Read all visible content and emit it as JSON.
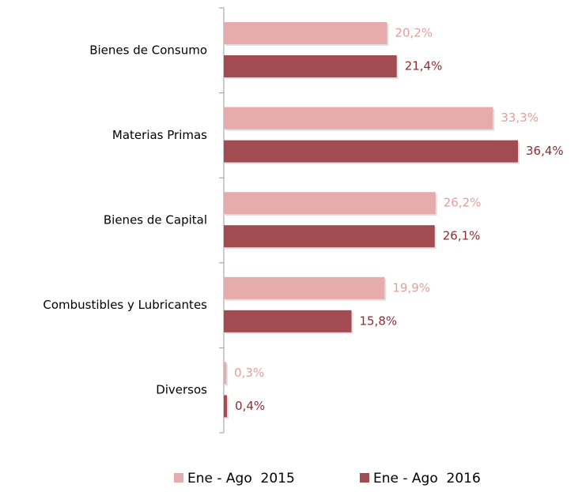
{
  "chart_data": {
    "type": "hbar",
    "categories": [
      "Bienes de Consumo",
      "Materias Primas",
      "Bienes de Capital",
      "Combustibles y Lubricantes",
      "Diversos"
    ],
    "series": [
      {
        "name": "Ene - Ago  2015",
        "color": "#e6abab",
        "label_color": "#e39d9d",
        "values": [
          20.2,
          33.3,
          26.2,
          19.9,
          0.3
        ],
        "value_labels": [
          "20,2%",
          "33,3%",
          "26,2%",
          "19,9%",
          "0,3%"
        ]
      },
      {
        "name": "Ene - Ago  2016",
        "color": "#a24b50",
        "label_color": "#8e2c32",
        "values": [
          21.4,
          36.4,
          26.1,
          15.8,
          0.4
        ],
        "value_labels": [
          "21,4%",
          "36,4%",
          "26,1%",
          "15,8%",
          "0,4%"
        ]
      }
    ]
  }
}
